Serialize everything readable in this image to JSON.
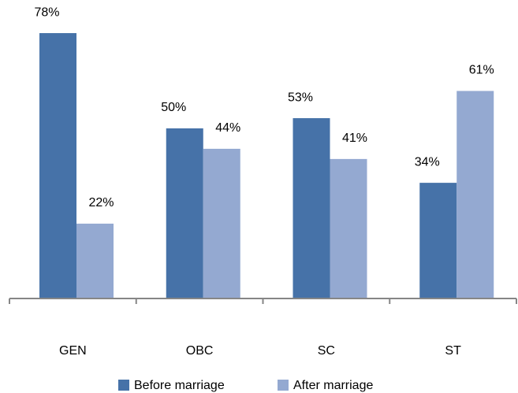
{
  "chart_data": {
    "type": "bar",
    "categories": [
      "GEN",
      "OBC",
      "SC",
      "ST"
    ],
    "series": [
      {
        "name": "Before marriage",
        "color": "#4672a8",
        "values": [
          78,
          50,
          53,
          34
        ],
        "value_labels": [
          "78%",
          "50%",
          "53%",
          "34%"
        ]
      },
      {
        "name": "After marriage",
        "color": "#94a9d1",
        "values": [
          22,
          44,
          41,
          61
        ],
        "value_labels": [
          "22%",
          "44%",
          "41%",
          "61%"
        ]
      }
    ],
    "ylim": [
      0,
      80
    ],
    "legend": "bottom"
  }
}
